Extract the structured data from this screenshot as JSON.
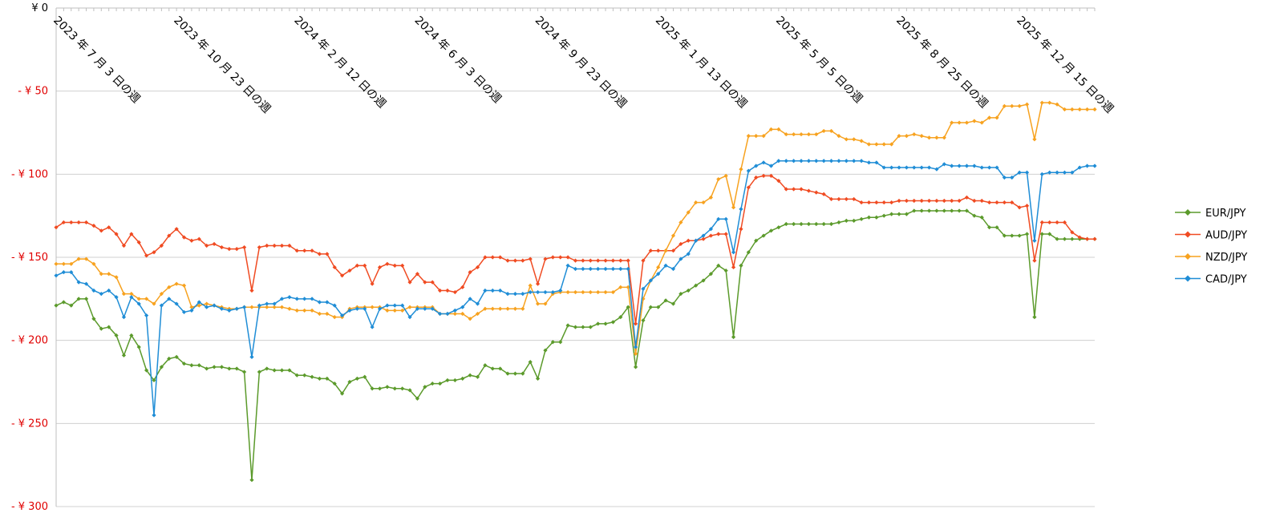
{
  "chart_data": {
    "type": "line",
    "categories": [
      "2023 年 7 月 3 日の週",
      null,
      null,
      null,
      null,
      null,
      null,
      null,
      null,
      null,
      null,
      null,
      null,
      null,
      null,
      null,
      "2023 年 10 月 23 日の週",
      null,
      null,
      null,
      null,
      null,
      null,
      null,
      null,
      null,
      null,
      null,
      null,
      null,
      null,
      null,
      "2024 年 2 月 12 日の週",
      null,
      null,
      null,
      null,
      null,
      null,
      null,
      null,
      null,
      null,
      null,
      null,
      null,
      null,
      null,
      "2024 年 6 月 3 日の週",
      null,
      null,
      null,
      null,
      null,
      null,
      null,
      null,
      null,
      null,
      null,
      null,
      null,
      null,
      null,
      "2024 年 9 月 23 日の週",
      null,
      null,
      null,
      null,
      null,
      null,
      null,
      null,
      null,
      null,
      null,
      null,
      null,
      null,
      null,
      "2025 年 1 月 13 日の週",
      null,
      null,
      null,
      null,
      null,
      null,
      null,
      null,
      null,
      null,
      null,
      null,
      null,
      null,
      null,
      "2025 年 5 月 5 日の週",
      null,
      null,
      null,
      null,
      null,
      null,
      null,
      null,
      null,
      null,
      null,
      null,
      null,
      null,
      null,
      "2025 年 8 月 25 日の週",
      null,
      null,
      null,
      null,
      null,
      null,
      null,
      null,
      null,
      null,
      null,
      null,
      null,
      null,
      null,
      "2025 年 12 月 15 日の週",
      null,
      null,
      null,
      null,
      null,
      null,
      null,
      null,
      null,
      null
    ],
    "series": [
      {
        "name": "EUR/JPY",
        "color": "#5b9a2b",
        "values": [
          -179,
          -177,
          -179,
          -175,
          -175,
          -187,
          -193,
          -192,
          -197,
          -209,
          -197,
          -204,
          -218,
          -224,
          -216,
          -211,
          -210,
          -214,
          -215,
          -215,
          -217,
          -216,
          -216,
          -217,
          -217,
          -219,
          -284,
          -219,
          -217,
          -218,
          -218,
          -218,
          -221,
          -221,
          -222,
          -223,
          -223,
          -226,
          -232,
          -225,
          -223,
          -222,
          -229,
          -229,
          -228,
          -229,
          -229,
          -230,
          -235,
          -228,
          -226,
          -226,
          -224,
          -224,
          -223,
          -221,
          -222,
          -215,
          -217,
          -217,
          -220,
          -220,
          -220,
          -213,
          -223,
          -206,
          -201,
          -201,
          -191,
          -192,
          -192,
          -192,
          -190,
          -190,
          -189,
          -186,
          -180,
          -216,
          -188,
          -180,
          -180,
          -176,
          -178,
          -172,
          -170,
          -167,
          -164,
          -160,
          -155,
          -158,
          -198,
          -155,
          -147,
          -140,
          -137,
          -134,
          -132,
          -130,
          -130,
          -130,
          -130,
          -130,
          -130,
          -130,
          -129,
          -128,
          -128,
          -127,
          -126,
          -126,
          -125,
          -124,
          -124,
          -124,
          -122,
          -122,
          -122,
          -122,
          -122,
          -122,
          -122,
          -122,
          -125,
          -126,
          -132,
          -132,
          -137,
          -137,
          -137,
          -136,
          -186,
          -136,
          -136,
          -139,
          -139,
          -139,
          -139,
          -139,
          -139
        ]
      },
      {
        "name": "AUD/JPY",
        "color": "#f04b22",
        "values": [
          -132,
          -129,
          -129,
          -129,
          -129,
          -131,
          -134,
          -132,
          -136,
          -143,
          -136,
          -141,
          -149,
          -147,
          -143,
          -137,
          -133,
          -138,
          -140,
          -139,
          -143,
          -142,
          -144,
          -145,
          -145,
          -144,
          -170,
          -144,
          -143,
          -143,
          -143,
          -143,
          -146,
          -146,
          -146,
          -148,
          -148,
          -156,
          -161,
          -158,
          -155,
          -155,
          -166,
          -156,
          -154,
          -155,
          -155,
          -165,
          -160,
          -165,
          -165,
          -170,
          -170,
          -171,
          -168,
          -159,
          -156,
          -150,
          -150,
          -150,
          -152,
          -152,
          -152,
          -151,
          -166,
          -151,
          -150,
          -150,
          -150,
          -152,
          -152,
          -152,
          -152,
          -152,
          -152,
          -152,
          -152,
          -190,
          -152,
          -146,
          -146,
          -146,
          -146,
          -142,
          -140,
          -140,
          -139,
          -137,
          -136,
          -136,
          -156,
          -133,
          -108,
          -102,
          -101,
          -101,
          -104,
          -109,
          -109,
          -109,
          -110,
          -111,
          -112,
          -115,
          -115,
          -115,
          -115,
          -117,
          -117,
          -117,
          -117,
          -117,
          -116,
          -116,
          -116,
          -116,
          -116,
          -116,
          -116,
          -116,
          -116,
          -114,
          -116,
          -116,
          -117,
          -117,
          -117,
          -117,
          -120,
          -119,
          -152,
          -129,
          -129,
          -129,
          -129,
          -135,
          -138,
          -139,
          -139
        ]
      },
      {
        "name": "NZD/JPY",
        "color": "#f7a21f",
        "values": [
          -154,
          -154,
          -154,
          -151,
          -151,
          -154,
          -160,
          -160,
          -162,
          -172,
          -172,
          -175,
          -175,
          -178,
          -172,
          -168,
          -166,
          -167,
          -180,
          -179,
          -178,
          -179,
          -180,
          -181,
          -181,
          -180,
          -180,
          -180,
          -180,
          -180,
          -180,
          -181,
          -182,
          -182,
          -182,
          -184,
          -184,
          -186,
          -186,
          -181,
          -180,
          -180,
          -180,
          -180,
          -182,
          -182,
          -182,
          -180,
          -180,
          -180,
          -180,
          -184,
          -184,
          -184,
          -184,
          -187,
          -184,
          -181,
          -181,
          -181,
          -181,
          -181,
          -181,
          -167,
          -178,
          -178,
          -172,
          -171,
          -171,
          -171,
          -171,
          -171,
          -171,
          -171,
          -171,
          -168,
          -168,
          -208,
          -175,
          -164,
          -156,
          -146,
          -137,
          -129,
          -123,
          -117,
          -117,
          -114,
          -103,
          -101,
          -120,
          -97,
          -77,
          -77,
          -77,
          -73,
          -73,
          -76,
          -76,
          -76,
          -76,
          -76,
          -74,
          -74,
          -77,
          -79,
          -79,
          -80,
          -82,
          -82,
          -82,
          -82,
          -77,
          -77,
          -76,
          -77,
          -78,
          -78,
          -78,
          -69,
          -69,
          -69,
          -68,
          -69,
          -66,
          -66,
          -59,
          -59,
          -59,
          -58,
          -79,
          -57,
          -57,
          -58,
          -61,
          -61,
          -61,
          -61,
          -61
        ]
      },
      {
        "name": "CAD/JPY",
        "color": "#1f8dd6",
        "values": [
          -161,
          -159,
          -159,
          -165,
          -166,
          -170,
          -172,
          -170,
          -174,
          -186,
          -174,
          -178,
          -185,
          -245,
          -179,
          -175,
          -178,
          -183,
          -182,
          -177,
          -180,
          -179,
          -181,
          -182,
          -181,
          -180,
          -210,
          -179,
          -178,
          -178,
          -175,
          -174,
          -175,
          -175,
          -175,
          -177,
          -177,
          -179,
          -185,
          -182,
          -181,
          -181,
          -192,
          -181,
          -179,
          -179,
          -179,
          -186,
          -181,
          -181,
          -181,
          -184,
          -184,
          -182,
          -180,
          -175,
          -178,
          -170,
          -170,
          -170,
          -172,
          -172,
          -172,
          -171,
          -171,
          -171,
          -171,
          -170,
          -155,
          -157,
          -157,
          -157,
          -157,
          -157,
          -157,
          -157,
          -157,
          -204,
          -169,
          -164,
          -160,
          -155,
          -157,
          -151,
          -148,
          -140,
          -137,
          -133,
          -127,
          -127,
          -147,
          -121,
          -98,
          -95,
          -93,
          -95,
          -92,
          -92,
          -92,
          -92,
          -92,
          -92,
          -92,
          -92,
          -92,
          -92,
          -92,
          -92,
          -93,
          -93,
          -96,
          -96,
          -96,
          -96,
          -96,
          -96,
          -96,
          -97,
          -94,
          -95,
          -95,
          -95,
          -95,
          -96,
          -96,
          -96,
          -102,
          -102,
          -99,
          -99,
          -140,
          -100,
          -99,
          -99,
          -99,
          -99,
          -96,
          -95,
          -95
        ]
      }
    ],
    "ylim": [
      0,
      -300
    ],
    "yticks": [
      {
        "value": 0,
        "label": "¥ 0"
      },
      {
        "value": -50,
        "label": "- ¥ 50"
      },
      {
        "value": -100,
        "label": "- ¥ 100"
      },
      {
        "value": -150,
        "label": "- ¥ 150"
      },
      {
        "value": -200,
        "label": "- ¥ 200"
      },
      {
        "value": -250,
        "label": "- ¥ 250"
      },
      {
        "value": -300,
        "label": "- ¥ 300"
      }
    ],
    "grid": true,
    "legend": "right",
    "x_axis_position": "top"
  }
}
